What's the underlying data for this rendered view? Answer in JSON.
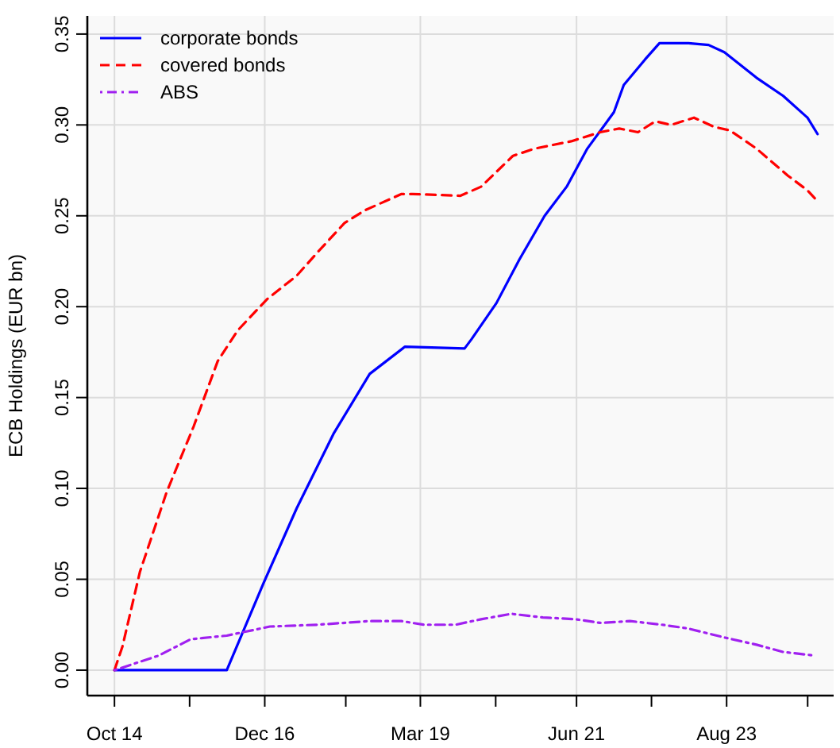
{
  "chart_data": {
    "type": "line",
    "ylabel": "ECB Holdings (EUR bn)",
    "xlim": [
      "2014-05-11",
      "2025-02-15"
    ],
    "ylim": [
      -0.014,
      0.36
    ],
    "xticks": [
      {
        "value": "2014-10",
        "label": "Oct 14"
      },
      {
        "value": "2015-11",
        "label": null
      },
      {
        "value": "2016-12",
        "label": "Dec 16"
      },
      {
        "value": "2018-02",
        "label": null
      },
      {
        "value": "2019-03",
        "label": "Mar 19"
      },
      {
        "value": "2020-04",
        "label": null
      },
      {
        "value": "2021-06",
        "label": "Jun 21"
      },
      {
        "value": "2022-07",
        "label": null
      },
      {
        "value": "2023-08",
        "label": "Aug 23"
      },
      {
        "value": "2024-10",
        "label": null
      }
    ],
    "yticks": [
      {
        "value": 0,
        "label": "0.00"
      },
      {
        "value": 0.05,
        "label": "0.05"
      },
      {
        "value": 0.1,
        "label": "0.10"
      },
      {
        "value": 0.15,
        "label": "0.15"
      },
      {
        "value": 0.2,
        "label": "0.20"
      },
      {
        "value": 0.25,
        "label": "0.25"
      },
      {
        "value": 0.3,
        "label": "0.30"
      },
      {
        "value": 0.35,
        "label": "0.35"
      }
    ],
    "grid": true,
    "legend": "top left",
    "series": [
      {
        "name": "corporate bonds",
        "color": "#0000ff",
        "line_style": "solid",
        "x": [
          "2014-10-01",
          "2016-05-15",
          "2016-11-25",
          "2017-05-18",
          "2017-11-28",
          "2018-06-07",
          "2018-12-10",
          "2019-10-20",
          "2019-11-25",
          "2020-04-05",
          "2020-08-04",
          "2020-12-15",
          "2021-04-10",
          "2021-07-28",
          "2021-12-15",
          "2022-02-05",
          "2022-05-28",
          "2022-08-12",
          "2023-01-12",
          "2023-04-28",
          "2023-07-20",
          "2024-01-05",
          "2024-05-25",
          "2024-09-30",
          "2024-11-22"
        ],
        "values": [
          0,
          0,
          0.048,
          0.089,
          0.13,
          0.163,
          0.178,
          0.177,
          0.182,
          0.202,
          0.226,
          0.25,
          0.266,
          0.287,
          0.307,
          0.322,
          0.336,
          0.345,
          0.345,
          0.344,
          0.34,
          0.326,
          0.316,
          0.304,
          0.295
        ]
      },
      {
        "name": "covered bonds",
        "color": "#ff0000",
        "line_style": "dashed",
        "x": [
          "2014-10-01",
          "2014-11-12",
          "2015-02-12",
          "2015-07-03",
          "2015-11-22",
          "2016-03-28",
          "2016-07-12",
          "2016-12-12",
          "2017-05-18",
          "2017-09-06",
          "2018-01-25",
          "2018-05-12",
          "2018-11-22",
          "2019-01-19",
          "2019-09-28",
          "2020-01-15",
          "2020-07-01",
          "2020-10-25",
          "2021-05-04",
          "2021-10-04",
          "2022-01-12",
          "2022-04-21",
          "2022-07-21",
          "2022-10-12",
          "2023-02-10",
          "2023-05-25",
          "2023-08-18",
          "2024-01-05",
          "2024-06-20",
          "2024-09-30",
          "2024-11-22"
        ],
        "values": [
          0,
          0.013,
          0.054,
          0.098,
          0.134,
          0.17,
          0.187,
          0.204,
          0.217,
          0.23,
          0.246,
          0.253,
          0.262,
          0.262,
          0.261,
          0.266,
          0.283,
          0.287,
          0.291,
          0.296,
          0.298,
          0.296,
          0.302,
          0.3,
          0.304,
          0.299,
          0.297,
          0.287,
          0.272,
          0.264,
          0.258
        ]
      },
      {
        "name": "ABS",
        "color": "#a020f0",
        "line_style": "dashdot",
        "x": [
          "2014-10-01",
          "2015-05-22",
          "2015-11-06",
          "2016-05-15",
          "2016-12-28",
          "2017-09-06",
          "2018-06-07",
          "2018-11-22",
          "2019-03-18",
          "2019-09-03",
          "2020-01-15",
          "2020-06-22",
          "2020-12-06",
          "2021-05-28",
          "2021-10-04",
          "2022-03-10",
          "2022-08-25",
          "2023-01-06",
          "2023-07-20",
          "2024-01-05",
          "2024-05-25",
          "2024-11-10"
        ],
        "values": [
          0,
          0.008,
          0.017,
          0.019,
          0.024,
          0.025,
          0.027,
          0.027,
          0.025,
          0.025,
          0.028,
          0.031,
          0.029,
          0.028,
          0.026,
          0.027,
          0.025,
          0.023,
          0.018,
          0.014,
          0.01,
          0.008
        ]
      }
    ]
  }
}
